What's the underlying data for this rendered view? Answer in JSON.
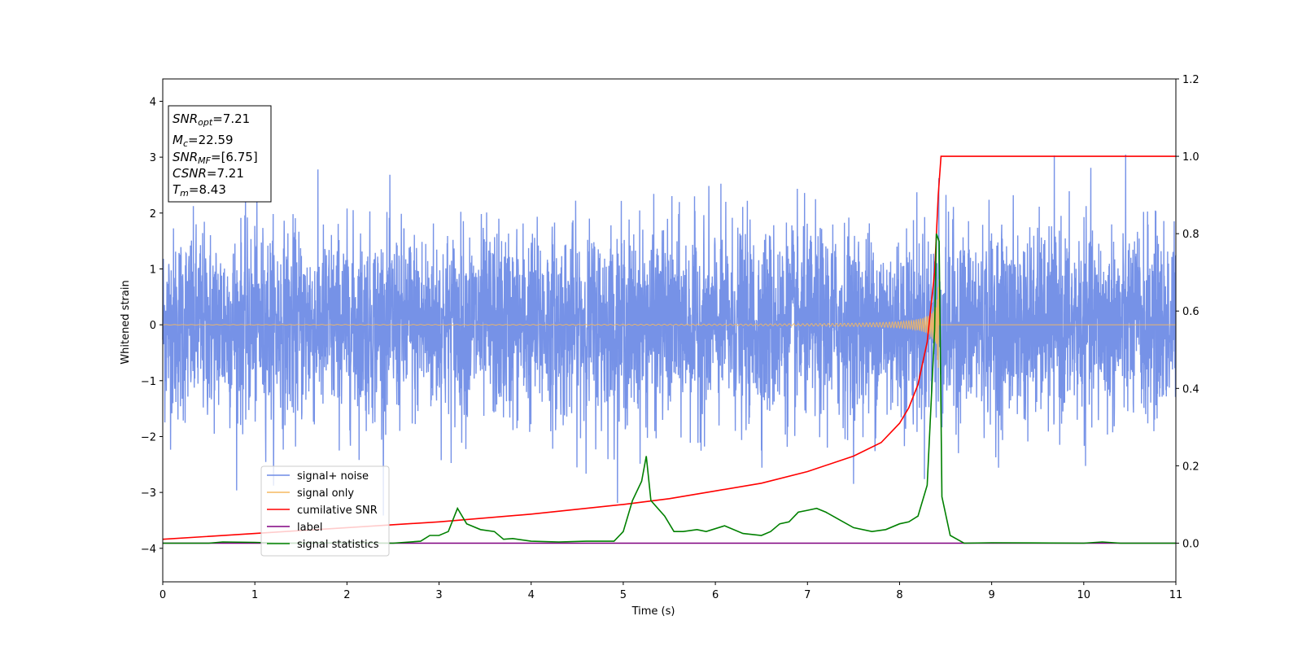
{
  "chart_data": {
    "type": "line",
    "title": "",
    "xlabel": "Time (s)",
    "ylabel": "Whitened strain",
    "xlim": [
      0,
      11
    ],
    "ylim": [
      -4.6,
      4.4
    ],
    "y2lim": [
      -0.1,
      1.2
    ],
    "x_ticks": [
      "0",
      "1",
      "2",
      "3",
      "4",
      "5",
      "6",
      "7",
      "8",
      "9",
      "10",
      "11"
    ],
    "y_ticks": [
      "−4",
      "−3",
      "−2",
      "−1",
      "0",
      "1",
      "2",
      "3",
      "4"
    ],
    "y2_ticks": [
      "0.0",
      "0.2",
      "0.4",
      "0.6",
      "0.8",
      "1.0",
      "1.2"
    ],
    "grid": false,
    "legend_position": "lower-left",
    "annotation": {
      "snr_opt": {
        "name": "SNR",
        "sub": "opt",
        "value": "=7.21"
      },
      "mc": {
        "name": "M",
        "sub": "c",
        "value": "=22.59"
      },
      "snr_mf": {
        "name": "SNR",
        "sub": "MF",
        "value": "=[6.75]"
      },
      "csnr": {
        "name": "CSNR",
        "value": "=7.21"
      },
      "tm": {
        "name": "T",
        "sub": "m",
        "value": "=8.43"
      }
    },
    "merger_time": 8.43,
    "noise_std": 0.85,
    "noise_peak": 4.0,
    "series": [
      {
        "name": "signal+ noise",
        "color": "#6f8ce6",
        "axis": "left"
      },
      {
        "name": "signal only",
        "color": "#f5b860",
        "axis": "left"
      },
      {
        "name": "cumilative SNR",
        "color": "#ff0000",
        "axis": "right",
        "points": [
          [
            0,
            0.01
          ],
          [
            1,
            0.025
          ],
          [
            2,
            0.04
          ],
          [
            3,
            0.055
          ],
          [
            4,
            0.075
          ],
          [
            5,
            0.1
          ],
          [
            5.5,
            0.115
          ],
          [
            6,
            0.135
          ],
          [
            6.5,
            0.155
          ],
          [
            7,
            0.185
          ],
          [
            7.5,
            0.225
          ],
          [
            7.8,
            0.26
          ],
          [
            8.0,
            0.31
          ],
          [
            8.1,
            0.35
          ],
          [
            8.2,
            0.41
          ],
          [
            8.3,
            0.52
          ],
          [
            8.38,
            0.7
          ],
          [
            8.42,
            0.9
          ],
          [
            8.45,
            1.0
          ],
          [
            11,
            1.0
          ]
        ]
      },
      {
        "name": "label",
        "color": "#800080",
        "axis": "right",
        "points": [
          [
            0,
            0.0
          ],
          [
            11,
            0.0
          ]
        ]
      },
      {
        "name": "signal statistics",
        "color": "#008000",
        "axis": "right",
        "points": [
          [
            0,
            0.0
          ],
          [
            0.5,
            0.0
          ],
          [
            0.65,
            0.003
          ],
          [
            1.0,
            0.002
          ],
          [
            1.3,
            0.0
          ],
          [
            2.0,
            0.001
          ],
          [
            2.5,
            0.0
          ],
          [
            2.8,
            0.005
          ],
          [
            2.9,
            0.02
          ],
          [
            3.0,
            0.02
          ],
          [
            3.1,
            0.03
          ],
          [
            3.2,
            0.09
          ],
          [
            3.3,
            0.05
          ],
          [
            3.45,
            0.035
          ],
          [
            3.6,
            0.03
          ],
          [
            3.7,
            0.01
          ],
          [
            3.8,
            0.012
          ],
          [
            4.0,
            0.005
          ],
          [
            4.3,
            0.003
          ],
          [
            4.6,
            0.005
          ],
          [
            4.9,
            0.005
          ],
          [
            5.0,
            0.03
          ],
          [
            5.1,
            0.11
          ],
          [
            5.2,
            0.16
          ],
          [
            5.25,
            0.225
          ],
          [
            5.3,
            0.11
          ],
          [
            5.45,
            0.07
          ],
          [
            5.55,
            0.03
          ],
          [
            5.65,
            0.03
          ],
          [
            5.8,
            0.035
          ],
          [
            5.9,
            0.03
          ],
          [
            6.1,
            0.045
          ],
          [
            6.3,
            0.025
          ],
          [
            6.5,
            0.02
          ],
          [
            6.6,
            0.03
          ],
          [
            6.7,
            0.05
          ],
          [
            6.8,
            0.055
          ],
          [
            6.9,
            0.08
          ],
          [
            7.0,
            0.085
          ],
          [
            7.1,
            0.09
          ],
          [
            7.2,
            0.08
          ],
          [
            7.35,
            0.06
          ],
          [
            7.5,
            0.04
          ],
          [
            7.7,
            0.03
          ],
          [
            7.85,
            0.035
          ],
          [
            8.0,
            0.05
          ],
          [
            8.1,
            0.055
          ],
          [
            8.2,
            0.07
          ],
          [
            8.3,
            0.15
          ],
          [
            8.38,
            0.55
          ],
          [
            8.4,
            0.8
          ],
          [
            8.43,
            0.78
          ],
          [
            8.46,
            0.12
          ],
          [
            8.55,
            0.02
          ],
          [
            8.7,
            0.0
          ],
          [
            9.0,
            0.001
          ],
          [
            10.0,
            0.0
          ],
          [
            10.2,
            0.003
          ],
          [
            10.4,
            0.0
          ],
          [
            11,
            0.0
          ]
        ]
      }
    ]
  }
}
